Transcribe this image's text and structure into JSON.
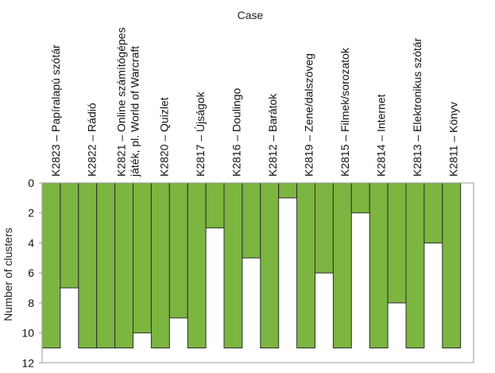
{
  "chart_data": {
    "type": "bar",
    "title": "Case",
    "xlabel": "",
    "ylabel": "Number of clusters",
    "y_axis_inverted": true,
    "ylim": [
      0,
      12
    ],
    "yticks": [
      0,
      2,
      4,
      6,
      8,
      10,
      12
    ],
    "grid": false,
    "legend": "none",
    "bar_color": "#7cb540",
    "bar_edge_color": "#2f2f2f",
    "categories": [
      {
        "lines": [
          "K2823 – Papíralapú szótár"
        ]
      },
      {
        "lines": [
          "K2822 – Rádió"
        ]
      },
      {
        "lines": [
          "K2821 – Online számítógépes",
          "játék, pl. World of Warcraft"
        ]
      },
      {
        "lines": [
          "K2820 – Quizlet"
        ]
      },
      {
        "lines": [
          "K2817 – Újságok"
        ]
      },
      {
        "lines": [
          "K2816 – Doulingo"
        ]
      },
      {
        "lines": [
          "K2812 – Barátok"
        ]
      },
      {
        "lines": [
          "K2819 – Zene/dalszöveg"
        ]
      },
      {
        "lines": [
          "K2815 – Filmek/sorozatok"
        ]
      },
      {
        "lines": [
          "K2814 – Internet"
        ]
      },
      {
        "lines": [
          "K2813 – Elektronikus szótár"
        ]
      },
      {
        "lines": [
          "K2811 – Könyv"
        ]
      }
    ],
    "bars": [
      {
        "case": "K2823",
        "value": 11
      },
      {
        "case": "K2823",
        "value": 7
      },
      {
        "case": "K2822",
        "value": 11
      },
      {
        "case": "K2822",
        "value": 11
      },
      {
        "case": "K2821",
        "value": 11
      },
      {
        "case": "K2821",
        "value": 10
      },
      {
        "case": "K2820",
        "value": 11
      },
      {
        "case": "K2820",
        "value": 9
      },
      {
        "case": "K2817",
        "value": 11
      },
      {
        "case": "K2817",
        "value": 3
      },
      {
        "case": "K2816",
        "value": 11
      },
      {
        "case": "K2816",
        "value": 5
      },
      {
        "case": "K2812",
        "value": 11
      },
      {
        "case": "K2812",
        "value": 1
      },
      {
        "case": "K2819",
        "value": 11
      },
      {
        "case": "K2819",
        "value": 6
      },
      {
        "case": "K2815",
        "value": 11
      },
      {
        "case": "K2815",
        "value": 2
      },
      {
        "case": "K2814",
        "value": 11
      },
      {
        "case": "K2814",
        "value": 8
      },
      {
        "case": "K2813",
        "value": 11
      },
      {
        "case": "K2813",
        "value": 4
      },
      {
        "case": "K2811",
        "value": 11
      }
    ]
  }
}
